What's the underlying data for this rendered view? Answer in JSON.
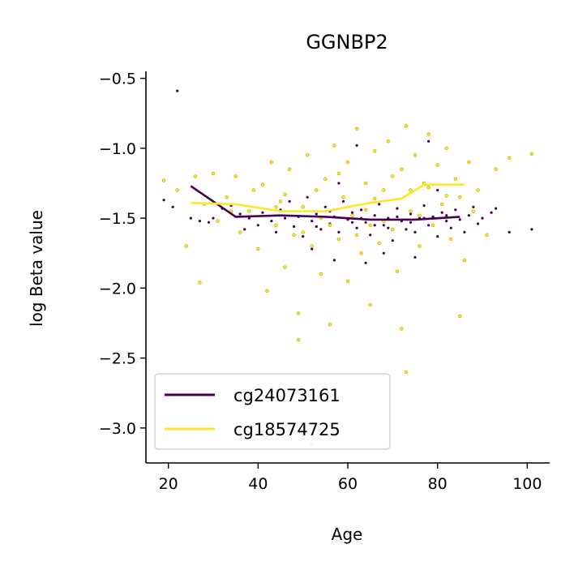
{
  "chart_data": {
    "type": "scatter",
    "title": "GGNBP2",
    "xlabel": "Age",
    "ylabel": "log Beta value",
    "xlim": [
      15,
      105
    ],
    "ylim": [
      -3.25,
      -0.45
    ],
    "xticks": [
      20,
      40,
      60,
      80,
      100
    ],
    "xtick_labels": [
      "20",
      "40",
      "60",
      "80",
      "100"
    ],
    "yticks": [
      -0.5,
      -1.0,
      -1.5,
      -2.0,
      -2.5,
      -3.0
    ],
    "ytick_labels": [
      "−0.5",
      "−1.0",
      "−1.5",
      "−2.0",
      "−2.5",
      "−3.0"
    ],
    "grid": false,
    "legend_position": "lower-left",
    "series": [
      {
        "name": "cg24073161",
        "color": "#440154",
        "trend": {
          "x": [
            25,
            35,
            45,
            55,
            65,
            75,
            85
          ],
          "y": [
            -1.27,
            -1.49,
            -1.48,
            -1.49,
            -1.51,
            -1.51,
            -1.49
          ]
        },
        "points": [
          [
            22,
            -0.59
          ],
          [
            19,
            -1.37
          ],
          [
            21,
            -1.42
          ],
          [
            25,
            -1.5
          ],
          [
            27,
            -1.52
          ],
          [
            29,
            -1.53
          ],
          [
            30,
            -1.5
          ],
          [
            32,
            -1.43
          ],
          [
            34,
            -1.41
          ],
          [
            36,
            -1.47
          ],
          [
            37,
            -1.58
          ],
          [
            38,
            -1.5
          ],
          [
            40,
            -1.55
          ],
          [
            41,
            -1.46
          ],
          [
            43,
            -1.52
          ],
          [
            44,
            -1.6
          ],
          [
            45,
            -1.44
          ],
          [
            46,
            -1.5
          ],
          [
            47,
            -1.38
          ],
          [
            48,
            -1.56
          ],
          [
            49,
            -1.49
          ],
          [
            50,
            -1.63
          ],
          [
            51,
            -1.35
          ],
          [
            52,
            -1.52
          ],
          [
            53,
            -1.47
          ],
          [
            54,
            -1.58
          ],
          [
            55,
            -1.42
          ],
          [
            56,
            -1.54
          ],
          [
            57,
            -1.49
          ],
          [
            58,
            -1.6
          ],
          [
            59,
            -1.38
          ],
          [
            60,
            -1.51
          ],
          [
            61,
            -1.46
          ],
          [
            62,
            -1.57
          ],
          [
            63,
            -1.44
          ],
          [
            64,
            -1.53
          ],
          [
            65,
            -1.62
          ],
          [
            66,
            -1.48
          ],
          [
            67,
            -1.4
          ],
          [
            68,
            -1.55
          ],
          [
            69,
            -1.5
          ],
          [
            70,
            -1.66
          ],
          [
            71,
            -1.43
          ],
          [
            72,
            -1.52
          ],
          [
            73,
            -1.58
          ],
          [
            74,
            -1.47
          ],
          [
            75,
            -1.6
          ],
          [
            76,
            -1.5
          ],
          [
            77,
            -1.41
          ],
          [
            78,
            -1.55
          ],
          [
            79,
            -1.49
          ],
          [
            80,
            -1.63
          ],
          [
            81,
            -1.46
          ],
          [
            82,
            -1.52
          ],
          [
            83,
            -1.57
          ],
          [
            84,
            -1.44
          ],
          [
            85,
            -1.51
          ],
          [
            86,
            -1.6
          ],
          [
            87,
            -1.48
          ],
          [
            88,
            -1.42
          ],
          [
            89,
            -1.54
          ],
          [
            90,
            -1.5
          ],
          [
            92,
            -1.46
          ],
          [
            93,
            -1.43
          ],
          [
            96,
            -1.6
          ],
          [
            101,
            -1.58
          ],
          [
            78,
            -0.95
          ],
          [
            62,
            -0.98
          ],
          [
            57,
            -1.8
          ],
          [
            64,
            -1.82
          ],
          [
            68,
            -1.75
          ],
          [
            75,
            -1.78
          ],
          [
            52,
            -1.72
          ],
          [
            58,
            -1.25
          ],
          [
            80,
            -1.3
          ],
          [
            53,
            -1.56
          ],
          [
            61,
            -1.53
          ],
          [
            66,
            -1.55
          ],
          [
            71,
            -1.49
          ],
          [
            74,
            -1.53
          ],
          [
            77,
            -1.5
          ],
          [
            82,
            -1.48
          ],
          [
            56,
            -1.45
          ],
          [
            63,
            -1.5
          ],
          [
            69,
            -1.57
          ]
        ]
      },
      {
        "name": "cg18574725",
        "color": "#fde725",
        "trend": {
          "x": [
            25,
            35,
            45,
            55,
            65,
            72,
            77,
            86
          ],
          "y": [
            -1.39,
            -1.4,
            -1.45,
            -1.45,
            -1.39,
            -1.36,
            -1.26,
            -1.26
          ]
        },
        "points": [
          [
            19,
            -1.23
          ],
          [
            22,
            -1.3
          ],
          [
            24,
            -1.7
          ],
          [
            26,
            -1.2
          ],
          [
            27,
            -1.96
          ],
          [
            28,
            -1.4
          ],
          [
            30,
            -1.18
          ],
          [
            31,
            -1.52
          ],
          [
            33,
            -1.35
          ],
          [
            35,
            -1.2
          ],
          [
            36,
            -1.6
          ],
          [
            38,
            -1.45
          ],
          [
            39,
            -1.3
          ],
          [
            40,
            -1.72
          ],
          [
            41,
            -1.26
          ],
          [
            42,
            -2.02
          ],
          [
            43,
            -1.1
          ],
          [
            44,
            -1.55
          ],
          [
            45,
            -1.38
          ],
          [
            46,
            -1.85
          ],
          [
            47,
            -1.15
          ],
          [
            48,
            -1.62
          ],
          [
            49,
            -2.37
          ],
          [
            49,
            -2.18
          ],
          [
            50,
            -1.42
          ],
          [
            51,
            -1.05
          ],
          [
            52,
            -3.12
          ],
          [
            52,
            -1.7
          ],
          [
            53,
            -1.3
          ],
          [
            54,
            -1.9
          ],
          [
            55,
            -1.22
          ],
          [
            56,
            -2.26
          ],
          [
            56,
            -1.55
          ],
          [
            57,
            -0.98
          ],
          [
            58,
            -1.65
          ],
          [
            59,
            -1.35
          ],
          [
            60,
            -1.95
          ],
          [
            60,
            -1.1
          ],
          [
            61,
            -1.48
          ],
          [
            62,
            -0.86
          ],
          [
            63,
            -1.75
          ],
          [
            64,
            -1.25
          ],
          [
            65,
            -2.12
          ],
          [
            65,
            -1.55
          ],
          [
            66,
            -1.02
          ],
          [
            67,
            -1.68
          ],
          [
            68,
            -1.3
          ],
          [
            69,
            -0.95
          ],
          [
            70,
            -1.58
          ],
          [
            71,
            -1.88
          ],
          [
            72,
            -2.29
          ],
          [
            72,
            -1.15
          ],
          [
            73,
            -2.6
          ],
          [
            73,
            -0.84
          ],
          [
            74,
            -1.45
          ],
          [
            75,
            -1.05
          ],
          [
            76,
            -1.7
          ],
          [
            77,
            -1.25
          ],
          [
            78,
            -0.9
          ],
          [
            79,
            -1.55
          ],
          [
            80,
            -1.12
          ],
          [
            81,
            -1.4
          ],
          [
            82,
            -1.0
          ],
          [
            83,
            -1.65
          ],
          [
            84,
            -1.22
          ],
          [
            85,
            -2.2
          ],
          [
            85,
            -1.35
          ],
          [
            86,
            -1.8
          ],
          [
            87,
            -1.1
          ],
          [
            88,
            -1.45
          ],
          [
            89,
            -1.3
          ],
          [
            91,
            -1.62
          ],
          [
            93,
            -1.15
          ],
          [
            96,
            -1.07
          ],
          [
            101,
            -1.04
          ],
          [
            34,
            -1.45
          ],
          [
            44,
            -1.42
          ],
          [
            54,
            -1.5
          ],
          [
            64,
            -1.44
          ],
          [
            74,
            -1.3
          ],
          [
            58,
            -1.18
          ],
          [
            66,
            -1.36
          ],
          [
            70,
            -1.2
          ],
          [
            78,
            -1.28
          ],
          [
            50,
            -1.6
          ],
          [
            62,
            -1.62
          ],
          [
            68,
            -1.52
          ],
          [
            76,
            -1.48
          ],
          [
            82,
            -1.34
          ],
          [
            46,
            -1.33
          ]
        ]
      }
    ]
  }
}
